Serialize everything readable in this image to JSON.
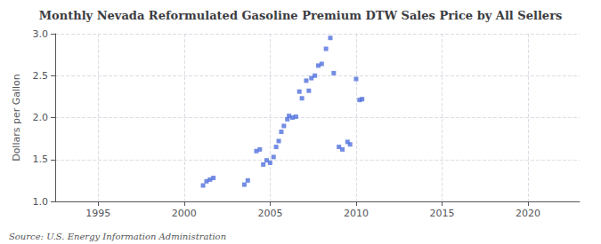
{
  "chart_data": {
    "type": "scatter",
    "title": "Monthly Nevada Reformulated Gasoline Premium DTW Sales Price by All Sellers",
    "ylabel": "Dollars per Gallon",
    "annotation": "Source: U.S. Energy Information Administration",
    "x": [
      2001.1,
      2001.3,
      2001.5,
      2001.7,
      2003.5,
      2003.7,
      2004.2,
      2004.4,
      2004.6,
      2004.8,
      2005.0,
      2005.2,
      2005.35,
      2005.5,
      2005.65,
      2005.8,
      2006.0,
      2006.1,
      2006.3,
      2006.5,
      2006.7,
      2006.85,
      2007.1,
      2007.25,
      2007.4,
      2007.6,
      2007.8,
      2008.0,
      2008.25,
      2008.5,
      2008.7,
      2009.0,
      2009.2,
      2009.5,
      2009.65,
      2010.0,
      2010.2,
      2010.35
    ],
    "values": [
      1.19,
      1.24,
      1.26,
      1.28,
      1.2,
      1.25,
      1.6,
      1.62,
      1.44,
      1.49,
      1.46,
      1.53,
      1.65,
      1.72,
      1.83,
      1.9,
      1.98,
      2.02,
      2.0,
      2.01,
      2.31,
      2.23,
      2.44,
      2.32,
      2.47,
      2.5,
      2.62,
      2.64,
      2.82,
      2.95,
      2.53,
      1.65,
      1.62,
      1.71,
      1.68,
      2.46,
      2.21,
      2.22
    ],
    "xlim": [
      1992.5,
      2023
    ],
    "ylim": [
      1.0,
      3.0
    ],
    "xticks": [
      1995,
      2000,
      2005,
      2010,
      2015,
      2020
    ],
    "yticks": [
      {
        "value": 1.0,
        "label": "1.0"
      },
      {
        "value": 1.5,
        "label": "1.5"
      },
      {
        "value": 2.0,
        "label": "2.0"
      },
      {
        "value": 2.5,
        "label": "2.5"
      },
      {
        "value": 3.0,
        "label": "3.0"
      }
    ],
    "grid": true,
    "marker": "square"
  }
}
